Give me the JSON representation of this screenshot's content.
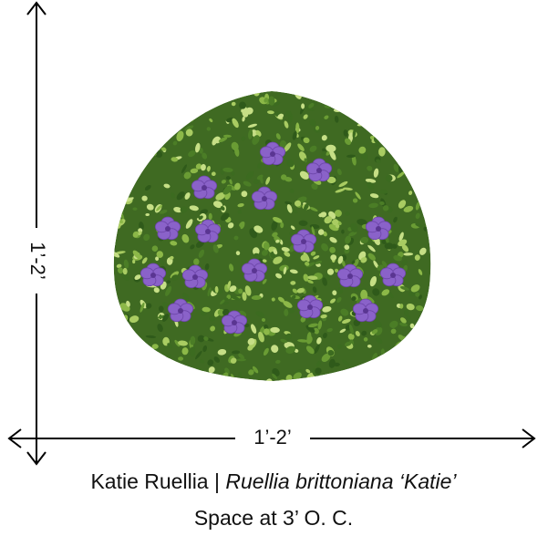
{
  "height_label": "1’-2’",
  "width_label": "1’-2’",
  "caption": {
    "common_name": "Katie Ruellia",
    "separator": "|",
    "botanical_name": "Ruellia brittoniana ‘Katie’",
    "spacing": "Space at 3’ O. C."
  }
}
